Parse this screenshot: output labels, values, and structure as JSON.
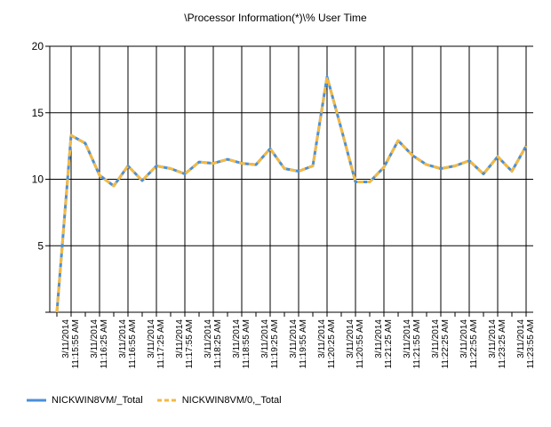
{
  "chart_data": {
    "type": "line",
    "title": "\\Processor Information(*)\\% User Time",
    "xlabel": "",
    "ylabel": "",
    "ylim": [
      0,
      20
    ],
    "yticks": [
      "5",
      "10",
      "15",
      "20"
    ],
    "grid": true,
    "legend_position": "bottom-left",
    "x": [
      "",
      "3/11/2014 11:15:55 AM",
      "",
      "3/11/2014 11:16:25 AM",
      "",
      "3/11/2014 11:16:55 AM",
      "",
      "3/11/2014 11:17:25 AM",
      "",
      "3/11/2014 11:17:55 AM",
      "",
      "3/11/2014 11:18:25 AM",
      "",
      "3/11/2014 11:18:55 AM",
      "",
      "3/11/2014 11:19:25 AM",
      "",
      "3/11/2014 11:19:55 AM",
      "",
      "3/11/2014 11:20:25 AM",
      "",
      "3/11/2014 11:20:55 AM",
      "",
      "3/11/2014 11:21:25 AM",
      "",
      "3/11/2014 11:21:55 AM",
      "",
      "3/11/2014 11:22:25 AM",
      "",
      "3/11/2014 11:22:55 AM",
      "",
      "3/11/2014 11:23:25 AM",
      "",
      "3/11/2014 11:23:55 AM"
    ],
    "series": [
      {
        "name": "NICKWIN8VM/_Total",
        "color": "#4a90d9",
        "style": "solid",
        "values": [
          0.0,
          13.3,
          12.7,
          10.3,
          9.5,
          11.0,
          9.9,
          11.0,
          10.8,
          10.4,
          11.3,
          11.2,
          11.5,
          11.2,
          11.1,
          12.3,
          10.8,
          10.6,
          11.0,
          17.7,
          13.8,
          9.8,
          9.8,
          10.9,
          12.9,
          11.8,
          11.1,
          10.8,
          11.0,
          11.4,
          10.4,
          11.7,
          10.6,
          12.5
        ]
      },
      {
        "name": "NICKWIN8VM/0,_Total",
        "color": "#f4b942",
        "style": "dashed",
        "values": [
          0.0,
          13.3,
          12.7,
          10.3,
          9.5,
          11.0,
          9.9,
          11.0,
          10.8,
          10.4,
          11.3,
          11.2,
          11.5,
          11.2,
          11.1,
          12.3,
          10.8,
          10.6,
          11.0,
          17.7,
          13.8,
          9.8,
          9.8,
          10.9,
          12.9,
          11.8,
          11.1,
          10.8,
          11.0,
          11.4,
          10.4,
          11.7,
          10.6,
          12.5
        ]
      }
    ]
  }
}
